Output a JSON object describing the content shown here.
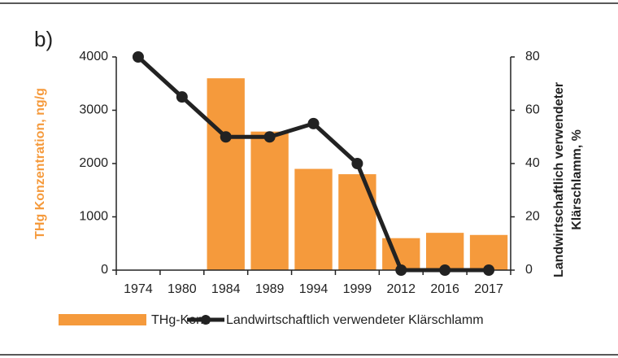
{
  "chart_data": {
    "type": "bar-line",
    "panel_label": "b)",
    "categories": [
      "1974",
      "1980",
      "1984",
      "1989",
      "1994",
      "1999",
      "2012",
      "2016",
      "2017"
    ],
    "series": [
      {
        "name": "THg-Konz",
        "type": "bar",
        "color": "#f59a3c",
        "values": [
          null,
          null,
          3600,
          2600,
          1900,
          1800,
          600,
          700,
          660
        ]
      },
      {
        "name": "Landwirtschaftlich verwendeter Klärschlamm",
        "type": "line",
        "axis": "y2",
        "color": "#222222",
        "values": [
          80,
          65,
          50,
          50,
          55,
          40,
          0,
          0,
          0
        ]
      }
    ],
    "ylabel": "THg Konzentration, ng/g",
    "y2label": [
      "Landwirtschaftlich verwendeter",
      "Klärschlamm, %"
    ],
    "ylim": [
      0,
      4000
    ],
    "yticks": [
      0,
      1000,
      2000,
      3000,
      4000
    ],
    "y2lim": [
      0,
      80
    ],
    "y2ticks": [
      0,
      20,
      40,
      60,
      80
    ],
    "legend": "bottom"
  }
}
